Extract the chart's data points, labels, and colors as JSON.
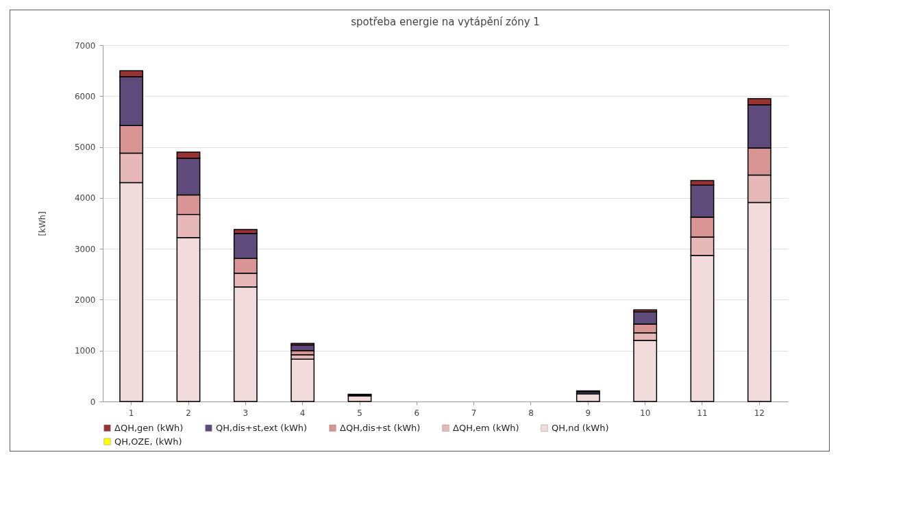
{
  "chart_data": {
    "type": "bar",
    "title": "spotřeba energie na vytápění zóny 1",
    "ylabel": "[kWh]",
    "categories": [
      "1",
      "2",
      "3",
      "4",
      "5",
      "6",
      "7",
      "8",
      "9",
      "10",
      "11",
      "12"
    ],
    "stacked": true,
    "ylim": [
      0,
      7000
    ],
    "yticks": [
      0,
      1000,
      2000,
      3000,
      4000,
      5000,
      6000,
      7000
    ],
    "grid": "y",
    "legend": "bottom",
    "series": [
      {
        "name": "QH,OZE, (kWh)",
        "color": "#ffff00",
        "values": [
          0,
          0,
          0,
          0,
          0,
          0,
          0,
          0,
          0,
          0,
          0,
          0
        ]
      },
      {
        "name": "QH,nd (kWh)",
        "color": "#f2dcdb",
        "values": [
          4300,
          3220,
          2250,
          830,
          110,
          0,
          0,
          0,
          150,
          1200,
          2870,
          3910
        ]
      },
      {
        "name": "ΔQH,em (kWh)",
        "color": "#e6b8b7",
        "values": [
          580,
          450,
          270,
          90,
          0,
          0,
          0,
          0,
          0,
          150,
          360,
          540
        ]
      },
      {
        "name": "ΔQH,dis+st (kWh)",
        "color": "#d99594",
        "values": [
          540,
          390,
          290,
          80,
          0,
          0,
          0,
          0,
          0,
          170,
          390,
          530
        ]
      },
      {
        "name": "QH,dis+st,ext (kWh)",
        "color": "#5f4b7b",
        "values": [
          960,
          720,
          490,
          110,
          20,
          0,
          0,
          0,
          40,
          240,
          630,
          850
        ]
      },
      {
        "name": "ΔQH,gen (kWh)",
        "color": "#993333",
        "values": [
          120,
          120,
          80,
          30,
          10,
          0,
          0,
          0,
          20,
          40,
          90,
          120
        ]
      }
    ]
  }
}
